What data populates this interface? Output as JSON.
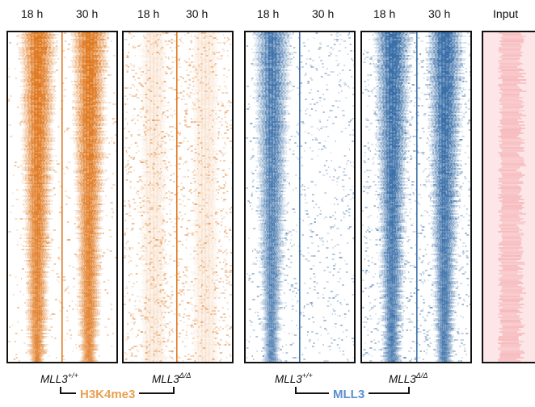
{
  "timepoints": {
    "p1_left": "18 h",
    "p1_right": "30 h",
    "p2_left": "18 h",
    "p2_right": "30 h",
    "p3_left": "18 h",
    "p3_right": "30 h",
    "p4_left": "18 h",
    "p4_right": "30 h",
    "p5": "Input"
  },
  "genotypes": {
    "g1": {
      "base": "MLL3",
      "sup": "+/+"
    },
    "g2": {
      "base": "MLL3",
      "sup": "Δ/Δ"
    },
    "g3": {
      "base": "MLL3",
      "sup": "+/+"
    },
    "g4": {
      "base": "MLL3",
      "sup": "Δ/Δ"
    }
  },
  "groups": {
    "h3k4me3": "H3K4me3",
    "mll3": "MLL3"
  },
  "colors": {
    "h3k4me3": "#e07a22",
    "mll3": "#3a6fa8",
    "mll3_label": "#5b8fd0",
    "input": "#f3a3a8",
    "frame": "#111111"
  }
}
